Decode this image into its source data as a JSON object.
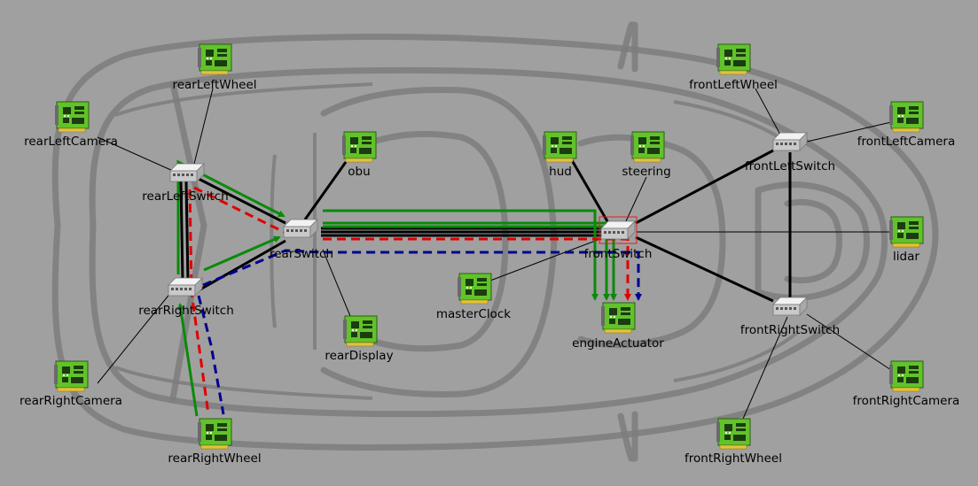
{
  "nodes": {
    "rearLeftWheel": "rearLeftWheel",
    "rearLeftCamera": "rearLeftCamera",
    "rearLeftSwitch": "rearLeftSwitch",
    "obu": "obu",
    "rearSwitch": "rearSwitch",
    "rearRightSwitch": "rearRightSwitch",
    "rearDisplay": "rearDisplay",
    "rearRightCamera": "rearRightCamera",
    "rearRightWheel": "rearRightWheel",
    "hud": "hud",
    "steering": "steering",
    "frontSwitch": "frontSwitch",
    "masterClock": "masterClock",
    "engineActuator": "engineActuator",
    "frontLeftWheel": "frontLeftWheel",
    "frontLeftCamera": "frontLeftCamera",
    "frontLeftSwitch": "frontLeftSwitch",
    "lidar": "lidar",
    "frontRightSwitch": "frontRightSwitch",
    "frontRightCamera": "frontRightCamera",
    "frontRightWheel": "frontRightWheel"
  },
  "colors": {
    "background": "#a0a0a0",
    "car_outline": "#7d7d7d",
    "flow_green": "#0a8a0a",
    "flow_red": "#e00000",
    "flow_blue": "#000090",
    "device_board": "#6fd12a",
    "selection": "#e02020"
  },
  "icons": {
    "end_node": "network-card-icon",
    "switch": "ethernet-switch-icon"
  },
  "selected": "frontSwitch"
}
